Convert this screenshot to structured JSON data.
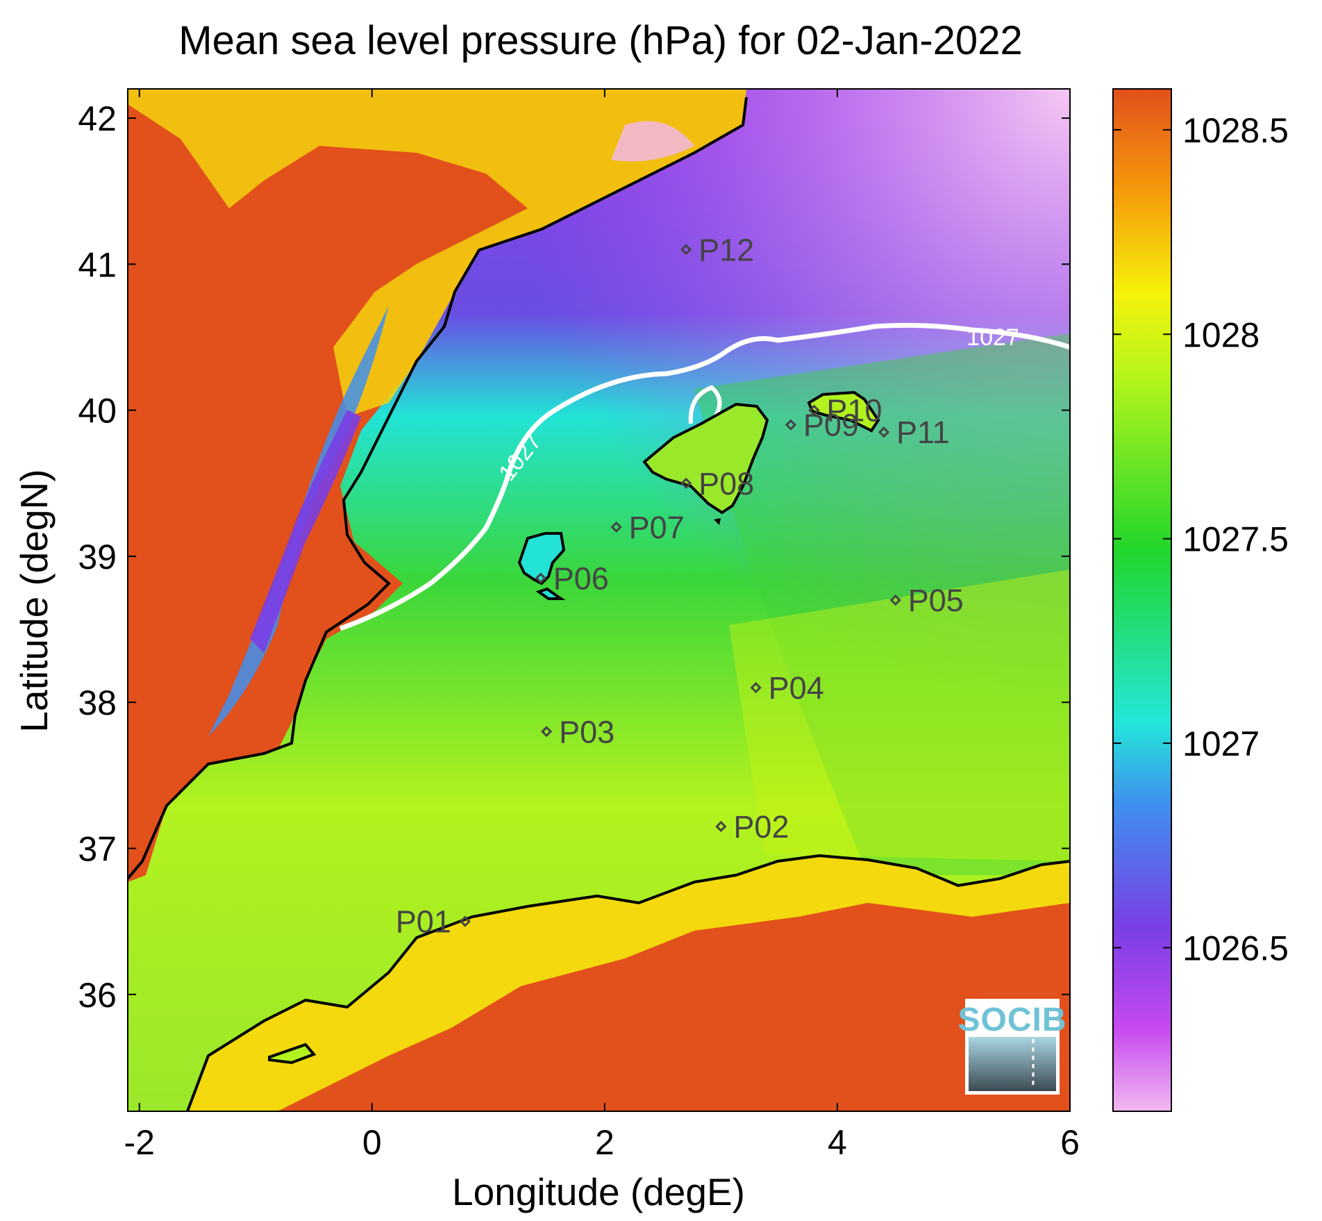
{
  "title": "Mean sea level pressure (hPa) for 02-Jan-2022",
  "xlabel": "Longitude (degE)",
  "ylabel": "Latitude (degN)",
  "map": {
    "lon_range": [
      -2.1,
      6.0
    ],
    "lat_range": [
      35.2,
      42.2
    ],
    "x_ticks": [
      "-2",
      "0",
      "2",
      "4",
      "6"
    ],
    "y_ticks": [
      "36",
      "37",
      "38",
      "39",
      "40",
      "41",
      "42"
    ]
  },
  "colorbar": {
    "range": [
      1026.1,
      1028.6
    ],
    "ticks": [
      "1026.5",
      "1027",
      "1027.5",
      "1028",
      "1028.5"
    ],
    "colors": [
      "#f2b8f0",
      "#c64af0",
      "#7a3ee6",
      "#3f8fef",
      "#23e6d9",
      "#22d62a",
      "#b6f51c",
      "#f5f20a",
      "#f59a0a",
      "#e2501c"
    ]
  },
  "contour": {
    "label": "1027",
    "color": "#ffffff"
  },
  "stations": [
    {
      "name": "P01",
      "lon": 0.8,
      "lat": 36.5
    },
    {
      "name": "P02",
      "lon": 3.0,
      "lat": 37.15
    },
    {
      "name": "P03",
      "lon": 1.5,
      "lat": 37.8
    },
    {
      "name": "P04",
      "lon": 3.3,
      "lat": 38.1
    },
    {
      "name": "P05",
      "lon": 4.5,
      "lat": 38.7
    },
    {
      "name": "P06",
      "lon": 1.45,
      "lat": 38.85
    },
    {
      "name": "P07",
      "lon": 2.1,
      "lat": 39.2
    },
    {
      "name": "P08",
      "lon": 2.7,
      "lat": 39.5
    },
    {
      "name": "P09",
      "lon": 3.6,
      "lat": 39.9
    },
    {
      "name": "P10",
      "lon": 3.8,
      "lat": 40.0
    },
    {
      "name": "P11",
      "lon": 4.4,
      "lat": 39.85
    },
    {
      "name": "P12",
      "lon": 2.7,
      "lat": 41.1
    }
  ],
  "logo": {
    "text": "SOCIB"
  }
}
